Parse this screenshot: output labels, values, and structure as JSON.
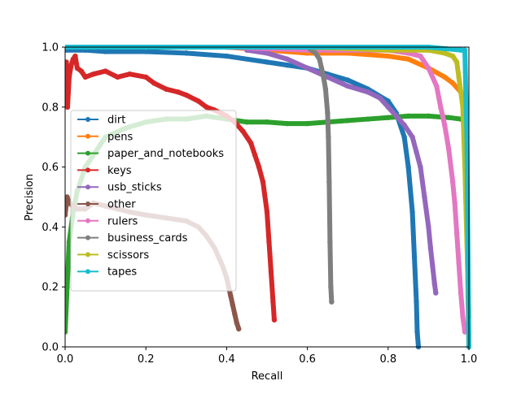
{
  "chart_data": {
    "type": "line",
    "title": "",
    "xlabel": "Recall",
    "ylabel": "Precision",
    "xlim": [
      0.0,
      1.0
    ],
    "ylim": [
      0.0,
      1.0
    ],
    "xticks": [
      "0.0",
      "0.2",
      "0.4",
      "0.6",
      "0.8",
      "1.0"
    ],
    "yticks": [
      "0.0",
      "0.2",
      "0.4",
      "0.6",
      "0.8",
      "1.0"
    ],
    "grid": false,
    "legend_position": "center-left",
    "series": [
      {
        "name": "dirt",
        "color": "#1f77b4",
        "x": [
          0.0,
          0.05,
          0.1,
          0.2,
          0.3,
          0.4,
          0.5,
          0.55,
          0.6,
          0.65,
          0.7,
          0.75,
          0.8,
          0.82,
          0.84,
          0.85,
          0.86,
          0.865,
          0.87,
          0.872,
          0.875
        ],
        "y": [
          0.99,
          0.99,
          0.985,
          0.985,
          0.98,
          0.97,
          0.95,
          0.94,
          0.93,
          0.91,
          0.89,
          0.86,
          0.82,
          0.78,
          0.7,
          0.6,
          0.45,
          0.3,
          0.15,
          0.05,
          0.0
        ]
      },
      {
        "name": "pens",
        "color": "#ff7f0e",
        "x": [
          0.0,
          0.1,
          0.2,
          0.3,
          0.4,
          0.5,
          0.6,
          0.7,
          0.8,
          0.85,
          0.9,
          0.94,
          0.96,
          0.98,
          0.99,
          0.995,
          1.0
        ],
        "y": [
          1.0,
          1.0,
          1.0,
          1.0,
          1.0,
          0.99,
          0.98,
          0.98,
          0.97,
          0.96,
          0.93,
          0.9,
          0.88,
          0.85,
          0.8,
          0.4,
          0.0
        ]
      },
      {
        "name": "paper_and_notebooks",
        "color": "#2ca02c",
        "x": [
          0.0,
          0.005,
          0.01,
          0.02,
          0.03,
          0.05,
          0.08,
          0.1,
          0.15,
          0.2,
          0.25,
          0.3,
          0.35,
          0.4,
          0.45,
          0.5,
          0.55,
          0.6,
          0.65,
          0.7,
          0.75,
          0.8,
          0.85,
          0.9,
          0.95,
          0.98,
          0.99
        ],
        "y": [
          0.05,
          0.2,
          0.35,
          0.45,
          0.52,
          0.6,
          0.66,
          0.7,
          0.73,
          0.75,
          0.76,
          0.76,
          0.77,
          0.76,
          0.75,
          0.75,
          0.745,
          0.745,
          0.75,
          0.755,
          0.76,
          0.765,
          0.77,
          0.77,
          0.765,
          0.76,
          0.76
        ]
      },
      {
        "name": "keys",
        "color": "#d62728",
        "x": [
          0.0,
          0.003,
          0.006,
          0.01,
          0.015,
          0.02,
          0.025,
          0.03,
          0.04,
          0.05,
          0.07,
          0.1,
          0.13,
          0.16,
          0.2,
          0.22,
          0.25,
          0.28,
          0.3,
          0.33,
          0.35,
          0.37,
          0.4,
          0.42,
          0.44,
          0.46,
          0.47,
          0.48,
          0.49,
          0.5,
          0.505,
          0.51,
          0.515,
          0.518
        ],
        "y": [
          0.9,
          0.95,
          0.8,
          0.9,
          0.94,
          0.96,
          0.97,
          0.93,
          0.92,
          0.9,
          0.91,
          0.92,
          0.9,
          0.91,
          0.9,
          0.88,
          0.86,
          0.85,
          0.84,
          0.82,
          0.8,
          0.79,
          0.77,
          0.75,
          0.72,
          0.68,
          0.64,
          0.6,
          0.55,
          0.45,
          0.35,
          0.25,
          0.15,
          0.09
        ]
      },
      {
        "name": "usb_sticks",
        "color": "#9467bd",
        "x": [
          0.45,
          0.5,
          0.55,
          0.6,
          0.65,
          0.7,
          0.75,
          0.78,
          0.8,
          0.82,
          0.84,
          0.86,
          0.87,
          0.88,
          0.89,
          0.9,
          0.905,
          0.91,
          0.915,
          0.918
        ],
        "y": [
          0.99,
          0.98,
          0.96,
          0.93,
          0.9,
          0.87,
          0.85,
          0.83,
          0.8,
          0.77,
          0.74,
          0.7,
          0.65,
          0.6,
          0.5,
          0.4,
          0.33,
          0.27,
          0.21,
          0.18
        ]
      },
      {
        "name": "other",
        "color": "#8c564b",
        "x": [
          0.0,
          0.005,
          0.01,
          0.02,
          0.03,
          0.05,
          0.07,
          0.1,
          0.13,
          0.16,
          0.2,
          0.25,
          0.3,
          0.33,
          0.35,
          0.37,
          0.38,
          0.39,
          0.4,
          0.405,
          0.41,
          0.415,
          0.42,
          0.425,
          0.43
        ],
        "y": [
          0.44,
          0.5,
          0.48,
          0.47,
          0.46,
          0.46,
          0.48,
          0.47,
          0.46,
          0.45,
          0.44,
          0.43,
          0.42,
          0.4,
          0.37,
          0.33,
          0.3,
          0.27,
          0.23,
          0.2,
          0.17,
          0.14,
          0.11,
          0.08,
          0.06
        ]
      },
      {
        "name": "rulers",
        "color": "#e377c2",
        "x": [
          0.0,
          0.2,
          0.4,
          0.6,
          0.7,
          0.8,
          0.85,
          0.88,
          0.9,
          0.92,
          0.93,
          0.94,
          0.95,
          0.96,
          0.965,
          0.97,
          0.975,
          0.98,
          0.985,
          0.99
        ],
        "y": [
          1.0,
          1.0,
          1.0,
          0.99,
          0.99,
          0.99,
          0.98,
          0.97,
          0.93,
          0.87,
          0.8,
          0.74,
          0.66,
          0.55,
          0.48,
          0.38,
          0.28,
          0.18,
          0.1,
          0.05
        ]
      },
      {
        "name": "business_cards",
        "color": "#7f7f7f",
        "x": [
          0.6,
          0.61,
          0.62,
          0.63,
          0.635,
          0.64,
          0.645,
          0.65,
          0.652,
          0.654,
          0.656,
          0.658,
          0.66
        ],
        "y": [
          1.0,
          0.99,
          0.98,
          0.96,
          0.93,
          0.9,
          0.86,
          0.78,
          0.7,
          0.55,
          0.35,
          0.2,
          0.15
        ]
      },
      {
        "name": "scissors",
        "color": "#bcbd22",
        "x": [
          0.0,
          0.3,
          0.6,
          0.8,
          0.9,
          0.94,
          0.96,
          0.97,
          0.975,
          0.98,
          0.985,
          0.99,
          0.995,
          1.0
        ],
        "y": [
          1.0,
          1.0,
          1.0,
          0.99,
          0.99,
          0.98,
          0.97,
          0.95,
          0.9,
          0.85,
          0.8,
          0.6,
          0.35,
          0.1
        ]
      },
      {
        "name": "tapes",
        "color": "#17becf",
        "x": [
          0.0,
          0.3,
          0.6,
          0.9,
          0.98,
          0.99,
          0.995,
          1.0
        ],
        "y": [
          1.0,
          1.0,
          1.0,
          1.0,
          0.99,
          0.99,
          0.7,
          0.0
        ]
      }
    ]
  }
}
